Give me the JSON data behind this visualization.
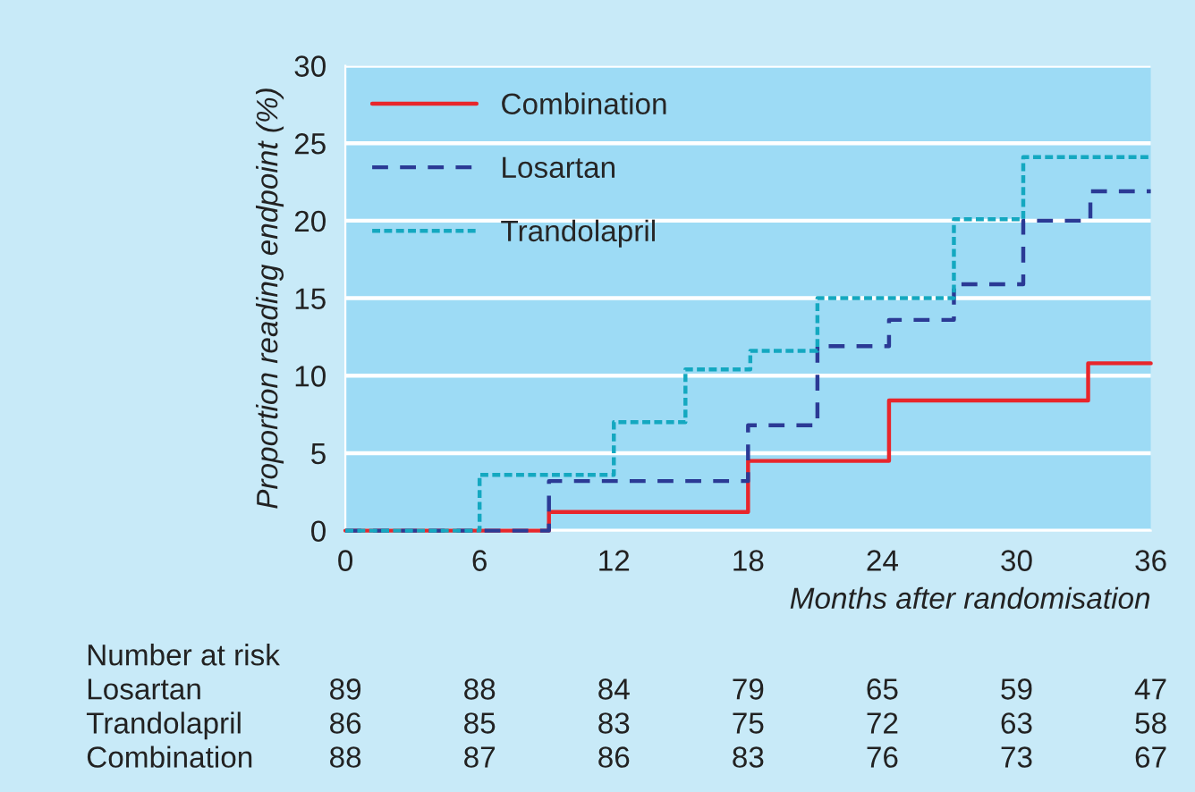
{
  "chart_data": {
    "type": "step",
    "ylabel": "Proportion reading endpoint (%)",
    "xlabel": "Months after randomisation",
    "xlim": [
      0,
      36
    ],
    "xticks": [
      0,
      6,
      12,
      18,
      24,
      30,
      36
    ],
    "ylim": [
      0,
      30
    ],
    "yticks": [
      0,
      5,
      10,
      15,
      20,
      25,
      30
    ],
    "grid": "y",
    "legend": "top left",
    "series": [
      {
        "name": "Combination",
        "color": "#e8262b",
        "line_style": "solid",
        "x": [
          0,
          9.1,
          18.0,
          24.3,
          33.2,
          36
        ],
        "values": [
          0,
          1.2,
          4.5,
          8.4,
          10.8,
          10.8
        ]
      },
      {
        "name": "Losartan",
        "color": "#2b3a95",
        "line_style": "dashed",
        "x": [
          0,
          9.1,
          18.0,
          21.1,
          24.3,
          27.2,
          30.3,
          33.3,
          36
        ],
        "values": [
          0,
          3.2,
          6.8,
          11.9,
          13.6,
          15.9,
          20.0,
          21.9,
          21.9
        ]
      },
      {
        "name": "Trandolapril",
        "color": "#14a8c0",
        "line_style": "dotted",
        "x": [
          0,
          6.0,
          12.0,
          15.2,
          18.1,
          21.1,
          27.2,
          30.3,
          36
        ],
        "values": [
          0,
          3.6,
          7.0,
          10.4,
          11.6,
          15.0,
          20.1,
          24.1,
          24.1
        ]
      }
    ],
    "annotations": [
      "Number at risk",
      "Losartan",
      "89",
      "88",
      "84",
      "79",
      "65",
      "59",
      "47",
      "Trandolapril",
      "86",
      "85",
      "83",
      "75",
      "72",
      "63",
      "58",
      "Combination",
      "88",
      "87",
      "86",
      "83",
      "76",
      "73",
      "67"
    ]
  }
}
